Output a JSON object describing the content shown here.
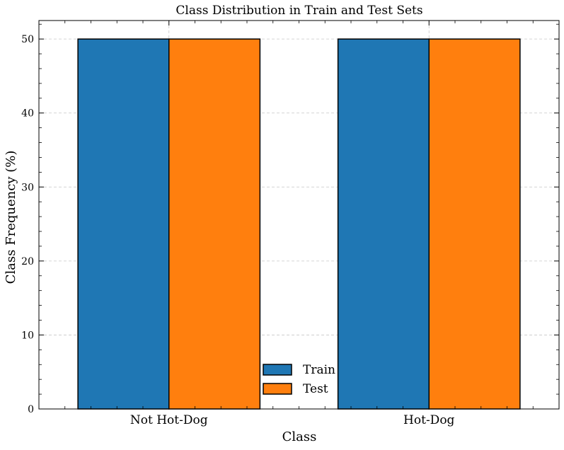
{
  "chart_data": {
    "type": "bar",
    "title": "Class Distribution in Train and Test Sets",
    "xlabel": "Class",
    "ylabel": "Class Frequency (%)",
    "categories": [
      "Not Hot-Dog",
      "Hot-Dog"
    ],
    "series": [
      {
        "name": "Train",
        "values": [
          50,
          50
        ],
        "color": "#1f77b4"
      },
      {
        "name": "Test",
        "values": [
          50,
          50
        ],
        "color": "#ff7f0e"
      }
    ],
    "ylim": [
      0,
      52.5
    ],
    "yticks": [
      0,
      10,
      20,
      30,
      40,
      50
    ],
    "ytick_labels": [
      "0",
      "10",
      "20",
      "30",
      "40",
      "50"
    ],
    "grid": true,
    "legend_position": "bottom-center"
  }
}
